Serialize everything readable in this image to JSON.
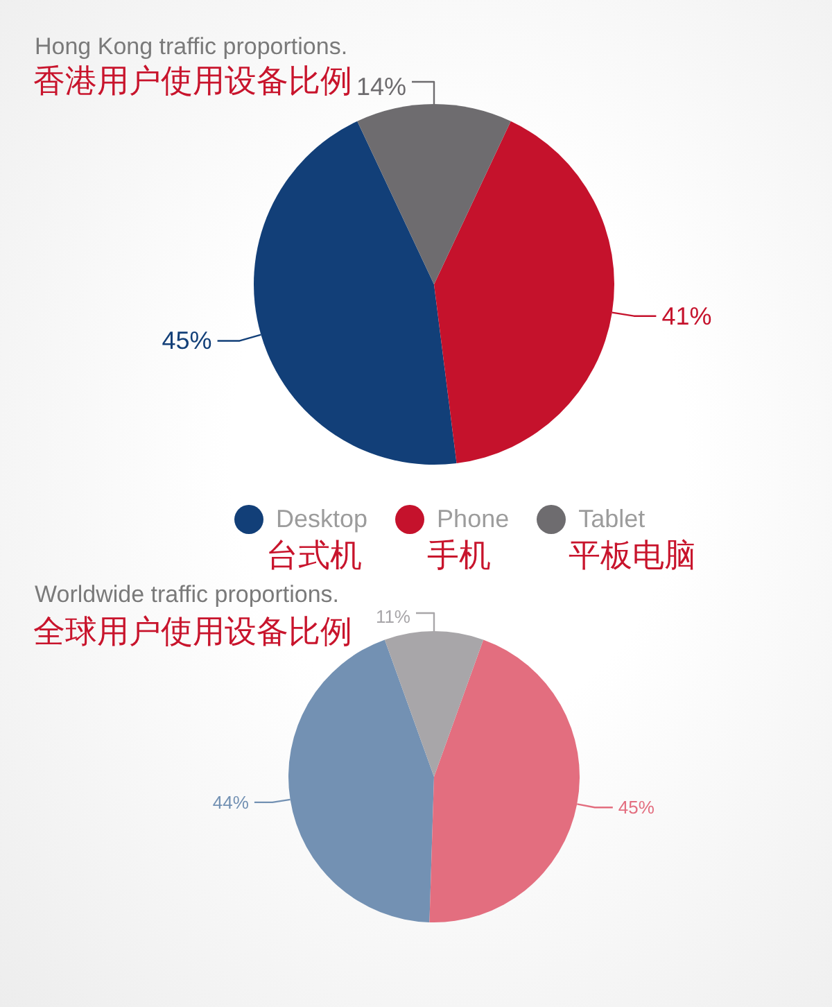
{
  "chart_data": [
    {
      "type": "pie",
      "title": "Hong Kong traffic proportions.",
      "subtitle": "香港用户使用设备比例",
      "categories": [
        "Desktop\n台式机",
        "Phone\n手机",
        "Tablet\n平板电脑"
      ],
      "values": [
        45,
        41,
        14
      ],
      "colors": [
        "#123f78",
        "#c5122c",
        "#6e6c6f"
      ],
      "value_labels": [
        "45%",
        "41%",
        "14%"
      ],
      "legend": "bottom"
    },
    {
      "type": "pie",
      "title": "Worldwide traffic proportions.",
      "subtitle": "全球用户使用设备比例",
      "categories": [
        null,
        null,
        null
      ],
      "values": [
        44,
        45,
        11
      ],
      "colors": [
        "#7391b3",
        "#e36e7f",
        "#a8a6a9"
      ],
      "value_labels": [
        "44%",
        "45%",
        "11%"
      ]
    }
  ]
}
